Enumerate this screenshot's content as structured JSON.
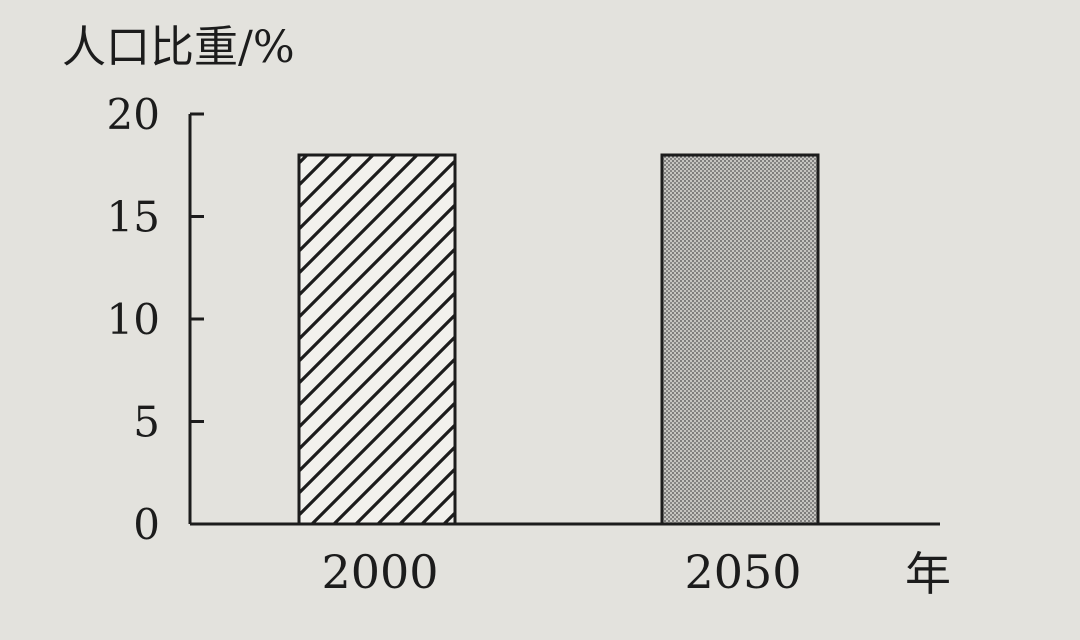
{
  "chart_data": {
    "type": "bar",
    "categories": [
      "2000",
      "2050"
    ],
    "values": [
      18,
      18
    ],
    "ylabel": "人口比重/%",
    "xlabel": "年",
    "ylim": [
      0,
      20
    ],
    "yticks": [
      0,
      5,
      10,
      15,
      20
    ],
    "patterns": [
      "diagonal-hatch",
      "dot-stipple"
    ],
    "grid": false,
    "legend": "none"
  },
  "colors": {
    "background": "#e3e2dd",
    "ink": "#1c1c1c",
    "bar_fill": "#f2f1ed"
  }
}
